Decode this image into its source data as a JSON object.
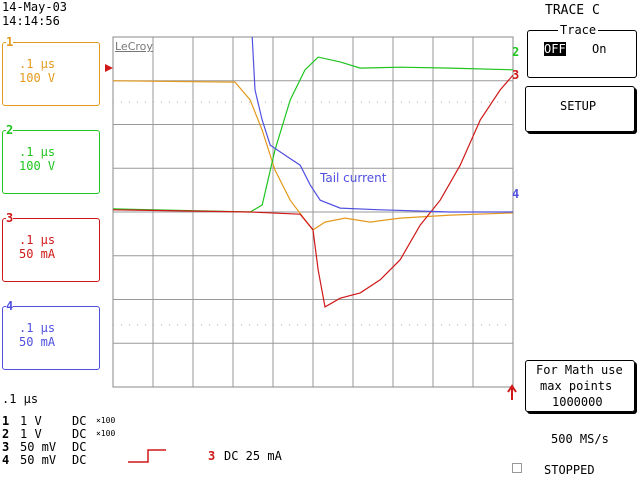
{
  "header": {
    "date": "14-May-03",
    "time": "14:14:56"
  },
  "channels": [
    {
      "number": "1",
      "timebase": ".1 μs",
      "scale": "100 V",
      "color": "#e39a1c"
    },
    {
      "number": "2",
      "timebase": ".1 μs",
      "scale": "100 V",
      "color": "#1fc41f"
    },
    {
      "number": "3",
      "timebase": ".1 μs",
      "scale": "50 mA",
      "color": "#d01818"
    },
    {
      "number": "4",
      "timebase": ".1 μs",
      "scale": "50 mA",
      "color": "#5050e0"
    }
  ],
  "display": {
    "brand": "LeCroy",
    "annotation": "Tail current",
    "xlim": [
      0,
      10
    ],
    "ylim": [
      0,
      8
    ],
    "traces": [
      {
        "name": "1",
        "color": "#e39a1c",
        "x": [
          0,
          3.05,
          3.43,
          3.73,
          4.05,
          4.43,
          4.8,
          5,
          5.3,
          5.8,
          6.43,
          7.18,
          8.43,
          10
        ],
        "values": [
          7,
          6.97,
          6.56,
          5.87,
          4.96,
          4.27,
          3.82,
          3.59,
          3.77,
          3.86,
          3.77,
          3.86,
          3.93,
          3.98
        ]
      },
      {
        "name": "2",
        "color": "#1fc41f",
        "x": [
          0,
          3.43,
          3.73,
          4.05,
          4.43,
          4.8,
          5.13,
          5.68,
          6.18,
          7.18,
          8.43,
          10
        ],
        "values": [
          4.07,
          4,
          4.16,
          5.42,
          6.56,
          7.25,
          7.54,
          7.43,
          7.29,
          7.31,
          7.29,
          7.25
        ]
      },
      {
        "name": "3",
        "color": "#d01818",
        "x": [
          0,
          3.43,
          4.68,
          5,
          5.13,
          5.3,
          5.68,
          6.18,
          6.68,
          7.18,
          7.68,
          8.18,
          8.68,
          9.18,
          9.68,
          10
        ],
        "values": [
          4.05,
          4,
          3.95,
          3.59,
          2.67,
          1.83,
          2.03,
          2.15,
          2.45,
          2.91,
          3.7,
          4.27,
          5.07,
          6.1,
          6.79,
          7.13
        ]
      },
      {
        "name": "4",
        "color": "#5050e0",
        "x": [
          3.48,
          3.55,
          3.73,
          3.93,
          4.3,
          4.68,
          4.93,
          5.18,
          5.68,
          6.68,
          8.43,
          10
        ],
        "values": [
          8,
          6.79,
          6.1,
          5.53,
          5.3,
          5.07,
          4.62,
          4.27,
          4.09,
          4.05,
          4,
          4
        ]
      }
    ]
  },
  "footer": {
    "timebase": ".1 μs",
    "rows": [
      {
        "number": "1",
        "scale": "1 V",
        "coupling": "DC",
        "probe": "×100"
      },
      {
        "number": "2",
        "scale": "1 V",
        "coupling": "DC",
        "probe": "×100"
      },
      {
        "number": "3",
        "scale": "50 mV",
        "coupling": "DC"
      },
      {
        "number": "4",
        "scale": "50 mV",
        "coupling": "DC"
      }
    ],
    "trigger": {
      "source": "3",
      "setting": "DC 25 mA"
    }
  },
  "panel": {
    "title": "TRACE C",
    "group": "Trace",
    "off": "OFF",
    "on": "On",
    "setup": "SETUP",
    "math1": "For Math use",
    "math2": "max points",
    "math3": "1000000",
    "rate": "500 MS/s",
    "status": "STOPPED"
  }
}
